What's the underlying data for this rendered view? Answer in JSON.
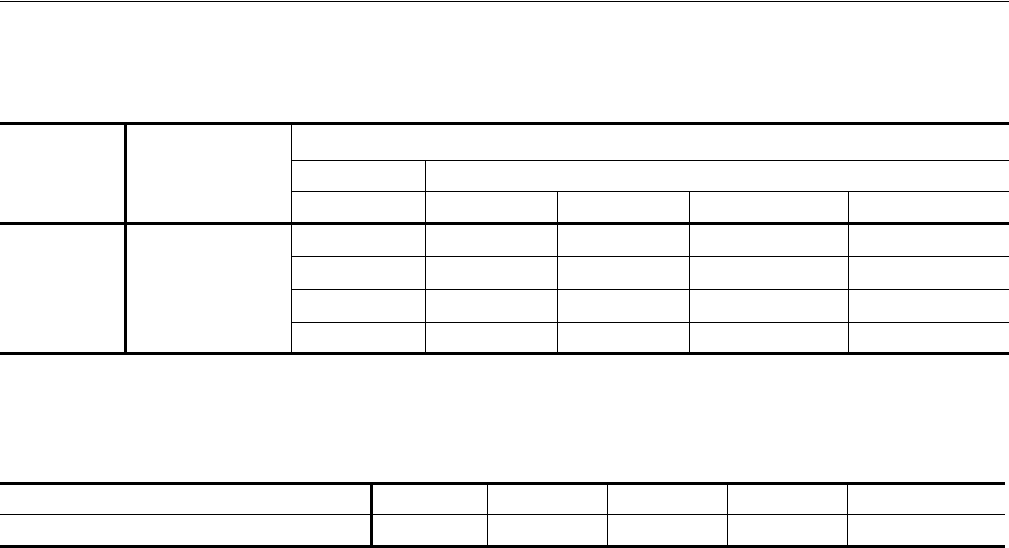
{
  "tables": [
    {
      "header_rows": 3,
      "body_rows": 4,
      "text": []
    },
    {
      "header_rows": 1,
      "body_rows": 1,
      "text": []
    }
  ],
  "colors": {
    "rule": "#000000",
    "background": "#ffffff"
  }
}
